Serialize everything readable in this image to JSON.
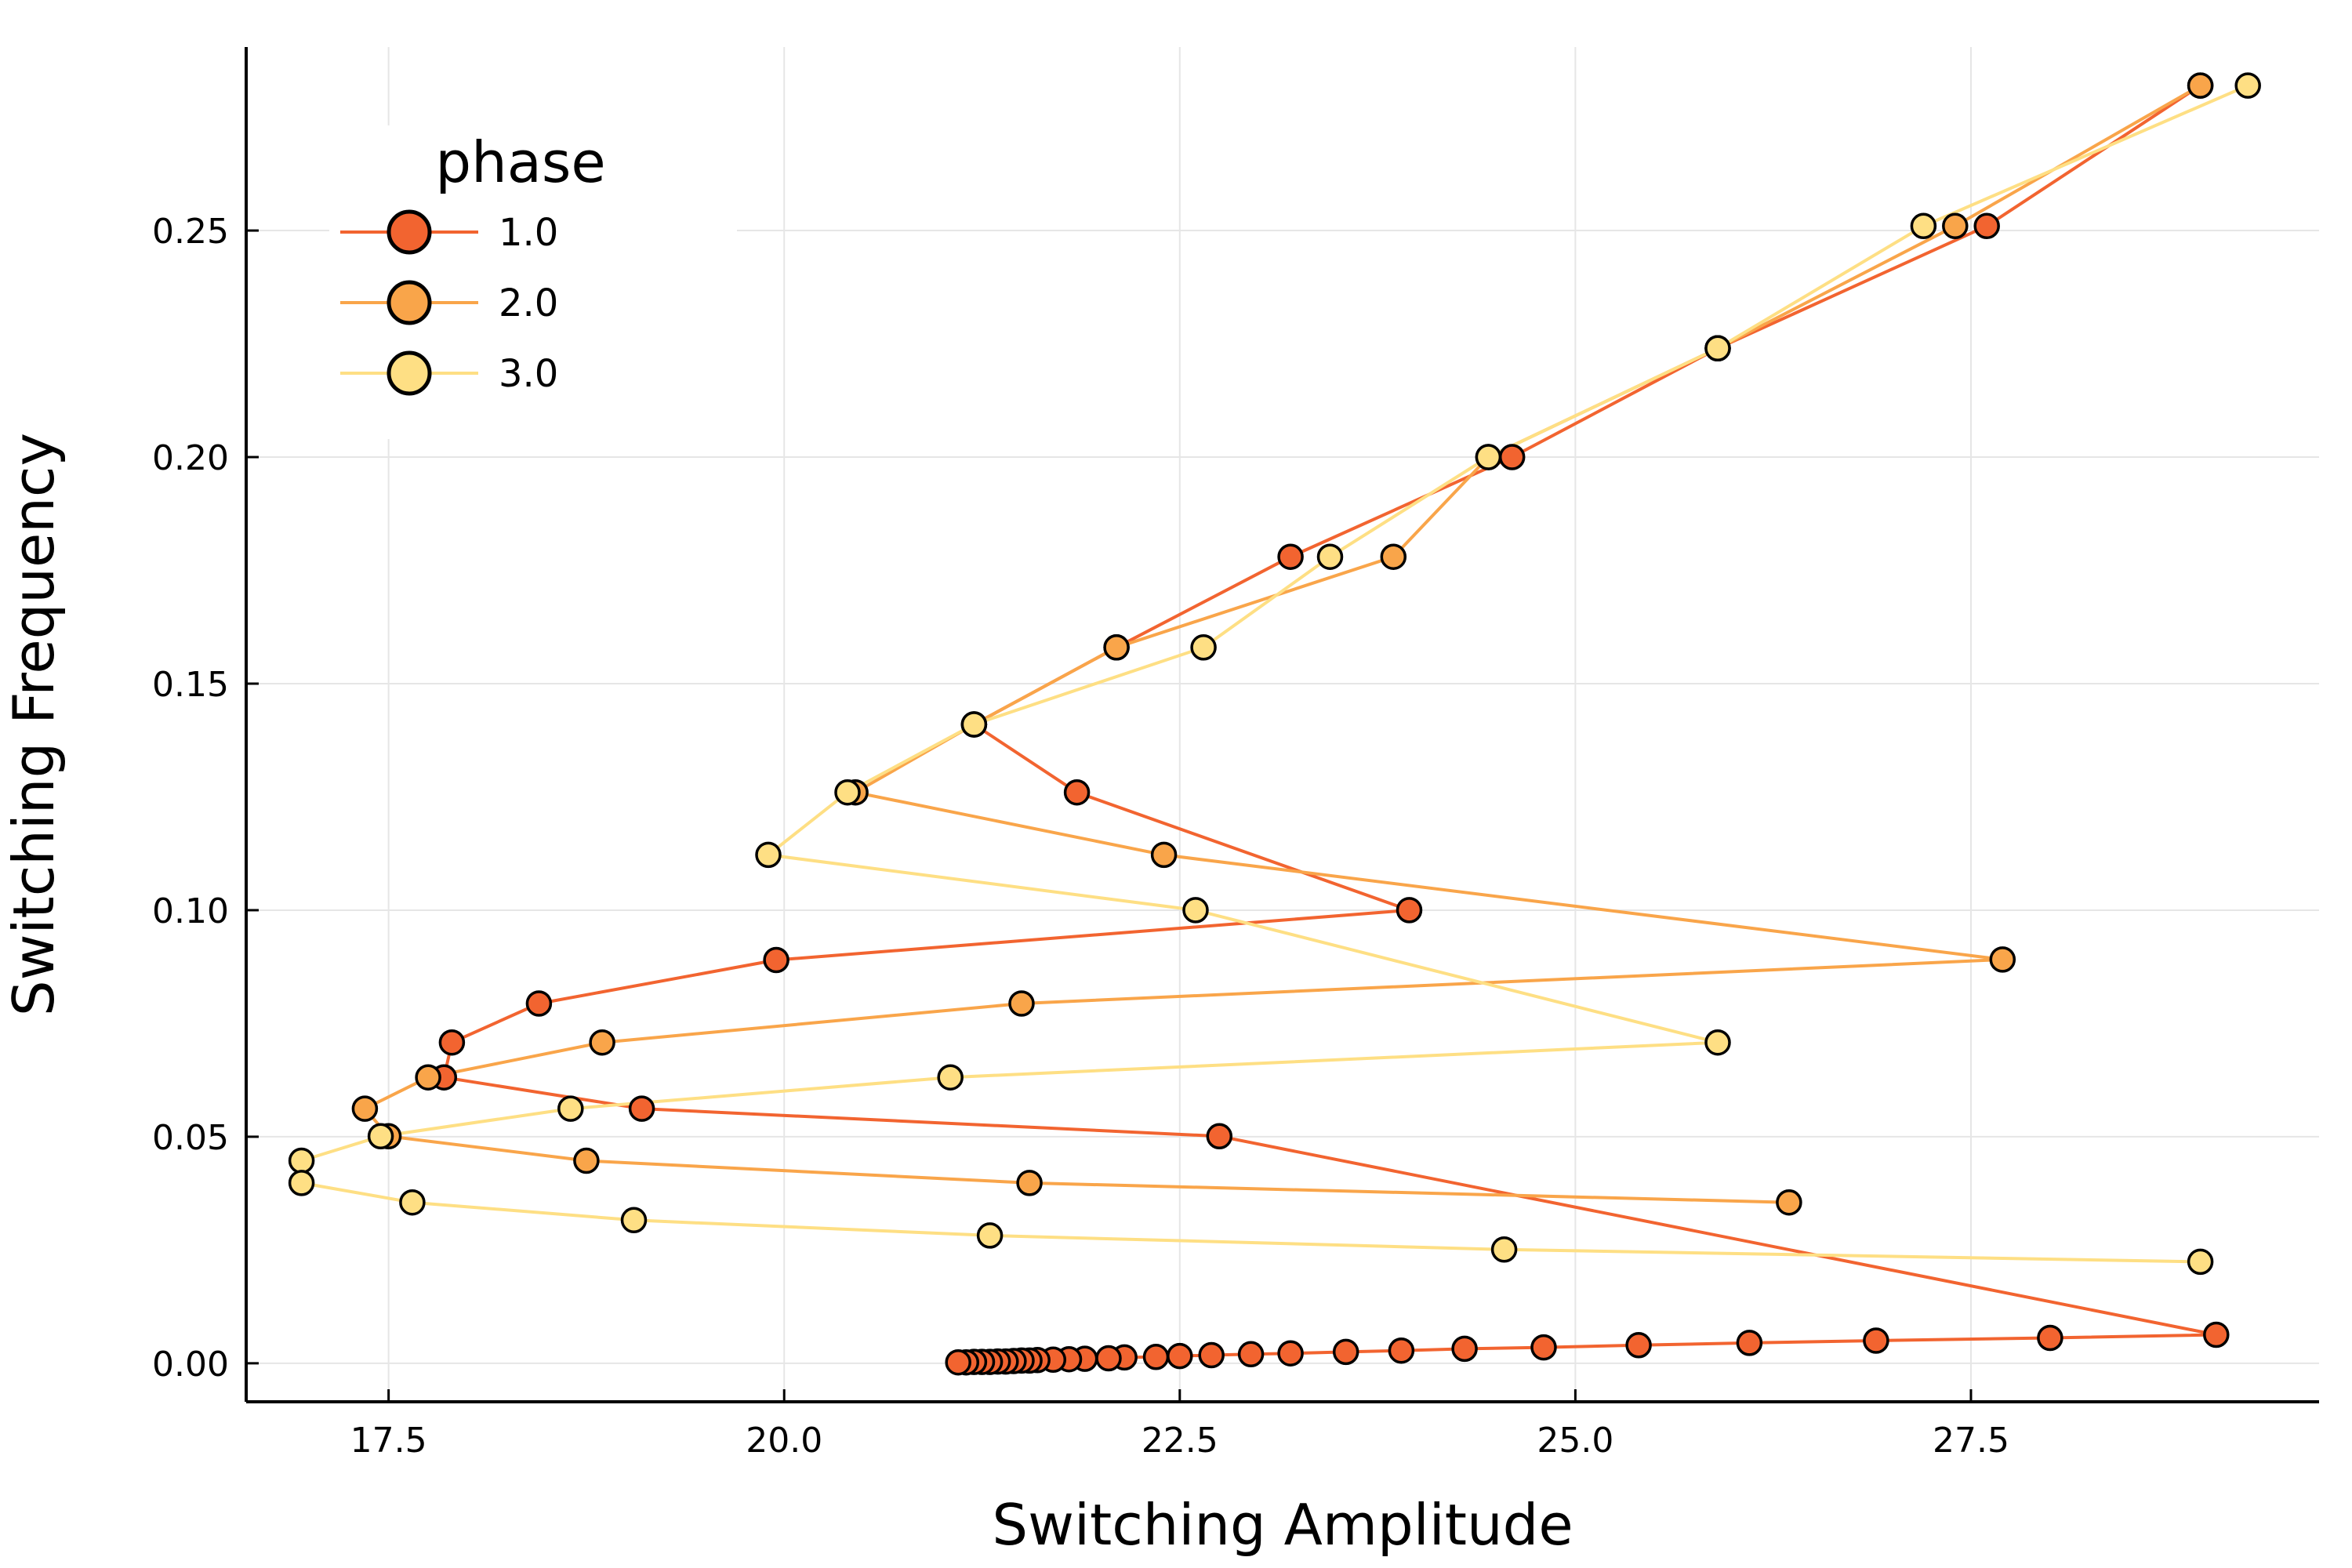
{
  "chart_data": {
    "type": "line",
    "xlabel": "Switching Amplitude",
    "ylabel": "Switching Frequency",
    "xlim": [
      16.6,
      29.7
    ],
    "ylim": [
      -0.0085,
      0.2905
    ],
    "xticks": [
      17.5,
      20.0,
      22.5,
      25.0,
      27.5
    ],
    "xtick_labels": [
      "17.5",
      "20.0",
      "22.5",
      "25.0",
      "27.5"
    ],
    "yticks": [
      0.0,
      0.05,
      0.1,
      0.15,
      0.2,
      0.25
    ],
    "ytick_labels": [
      "0.00",
      "0.05",
      "0.10",
      "0.15",
      "0.20",
      "0.25"
    ],
    "grid": true,
    "markers": true,
    "legend": {
      "title": "phase",
      "position": "top-left"
    },
    "series": [
      {
        "name": "1.0",
        "color": "#f26430",
        "x": [
          28.95,
          27.6,
          25.9,
          24.6,
          23.2,
          22.1,
          21.2,
          21.85,
          23.95,
          19.95,
          18.45,
          17.9,
          17.85,
          19.1,
          22.75,
          29.05,
          28.0,
          26.9,
          26.1,
          25.4,
          24.8,
          24.3,
          23.9,
          23.55,
          23.2,
          22.95,
          22.7,
          22.5,
          22.35,
          22.15,
          22.05,
          21.9,
          21.8,
          21.7,
          21.6,
          21.55,
          21.5,
          21.45,
          21.4,
          21.35,
          21.3,
          21.25,
          21.2,
          21.15,
          21.1
        ],
        "y": [
          0.282,
          0.251,
          0.224,
          0.2,
          0.178,
          0.158,
          0.141,
          0.126,
          0.1,
          0.089,
          0.0794,
          0.0708,
          0.0631,
          0.0562,
          0.0501,
          0.0063,
          0.0056,
          0.005,
          0.0045,
          0.004,
          0.0035,
          0.0032,
          0.0028,
          0.0025,
          0.0022,
          0.002,
          0.0018,
          0.0016,
          0.0014,
          0.0013,
          0.0011,
          0.001,
          0.0009,
          0.0008,
          0.0007,
          0.0006,
          0.0006,
          0.0005,
          0.0004,
          0.0004,
          0.0003,
          0.0003,
          0.0003,
          0.0002,
          0.0002
        ]
      },
      {
        "name": "2.0",
        "color": "#f9a54a",
        "x": [
          28.95,
          27.4,
          25.9,
          24.45,
          23.85,
          22.1,
          21.2,
          20.45,
          22.4,
          27.7,
          21.5,
          18.85,
          17.75,
          17.35,
          17.5,
          18.75,
          21.55,
          26.35
        ],
        "y": [
          0.282,
          0.251,
          0.224,
          0.2,
          0.178,
          0.158,
          0.141,
          0.126,
          0.1122,
          0.0891,
          0.0794,
          0.0708,
          0.0631,
          0.0562,
          0.0501,
          0.0447,
          0.0398,
          0.0355
        ]
      },
      {
        "name": "3.0",
        "color": "#fedf84",
        "x": [
          29.25,
          27.2,
          25.9,
          24.45,
          23.45,
          22.65,
          21.2,
          20.4,
          19.9,
          22.6,
          25.9,
          21.05,
          18.65,
          17.45,
          16.95,
          16.95,
          17.65,
          19.05,
          21.3,
          24.55,
          28.95
        ],
        "y": [
          0.282,
          0.251,
          0.224,
          0.2,
          0.178,
          0.158,
          0.141,
          0.126,
          0.1122,
          0.1,
          0.0708,
          0.0631,
          0.0562,
          0.0501,
          0.0447,
          0.0398,
          0.0355,
          0.0316,
          0.0282,
          0.0251,
          0.0224
        ]
      }
    ]
  }
}
